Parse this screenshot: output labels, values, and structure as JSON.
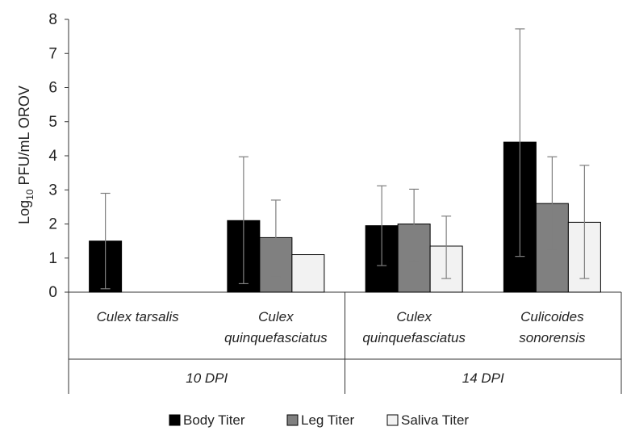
{
  "chart_data": {
    "type": "bar",
    "ylabel": {
      "prefix": "Log",
      "subscript": "10",
      "suffix": " PFU/mL OROV"
    },
    "ylim": [
      0,
      8
    ],
    "yticks": [
      "0",
      "1",
      "2",
      "3",
      "4",
      "5",
      "6",
      "7",
      "8"
    ],
    "categories": [
      {
        "lines": [
          "Culex tarsalis"
        ],
        "group": "10 DPI"
      },
      {
        "lines": [
          "Culex",
          "quinquefasciatus"
        ],
        "group": "10 DPI"
      },
      {
        "lines": [
          "Culex",
          "quinquefasciatus"
        ],
        "group": "14 DPI"
      },
      {
        "lines": [
          "Culicoides",
          "sonorensis"
        ],
        "group": "14 DPI"
      }
    ],
    "groups": [
      "10 DPI",
      "14 DPI"
    ],
    "series": [
      {
        "name": "Body Titer",
        "color": "#000000",
        "values": [
          1.5,
          2.1,
          1.95,
          4.4
        ],
        "err_low": [
          0.1,
          0.25,
          0.78,
          1.05
        ],
        "err_high": [
          2.9,
          3.97,
          3.12,
          7.72
        ]
      },
      {
        "name": "Leg Titer",
        "color": "#808080",
        "values": [
          null,
          1.6,
          2.0,
          2.6
        ],
        "err_low": [
          null,
          0.45,
          0.92,
          1.25
        ],
        "err_high": [
          null,
          2.7,
          3.02,
          3.97
        ]
      },
      {
        "name": "Saliva Titer",
        "color": "#f2f2f2",
        "values": [
          null,
          1.1,
          1.35,
          2.05
        ],
        "err_low": [
          null,
          null,
          0.4,
          0.4
        ],
        "err_high": [
          null,
          null,
          2.23,
          3.72
        ]
      }
    ],
    "legend": "bottom",
    "grid": false
  }
}
